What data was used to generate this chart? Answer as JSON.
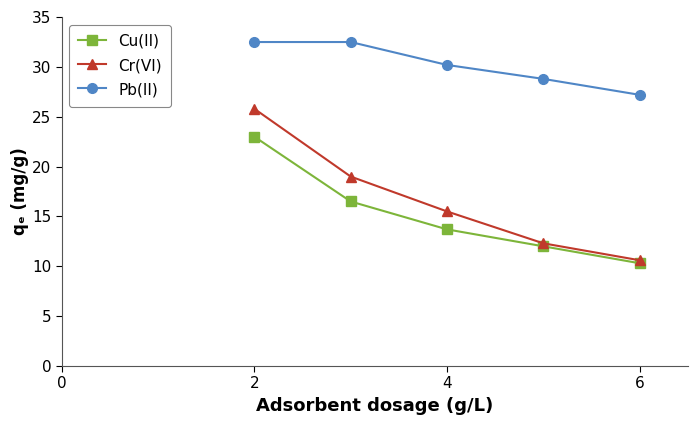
{
  "x": [
    2,
    3,
    4,
    5,
    6
  ],
  "cu_y": [
    23.0,
    16.5,
    13.7,
    12.0,
    10.3
  ],
  "cr_y": [
    25.8,
    19.0,
    15.5,
    12.3,
    10.6
  ],
  "pb_y": [
    32.5,
    32.5,
    30.2,
    28.8,
    27.2
  ],
  "cu_color": "#7db53a",
  "cr_color": "#c0392b",
  "pb_color": "#4f86c6",
  "cu_label": "Cu(II)",
  "cr_label": "Cr(VI)",
  "pb_label": "Pb(II)",
  "xlabel": "Adsorbent dosage (g/L)",
  "ylabel": "qₑ (mg/g)",
  "xlim": [
    0,
    6.5
  ],
  "ylim": [
    0,
    35
  ],
  "xticks": [
    0,
    2,
    4,
    6
  ],
  "yticks": [
    0,
    5,
    10,
    15,
    20,
    25,
    30,
    35
  ],
  "background_color": "#ffffff",
  "marker_size": 7,
  "line_width": 1.5,
  "xlabel_fontsize": 13,
  "ylabel_fontsize": 12,
  "tick_fontsize": 11,
  "legend_fontsize": 11
}
